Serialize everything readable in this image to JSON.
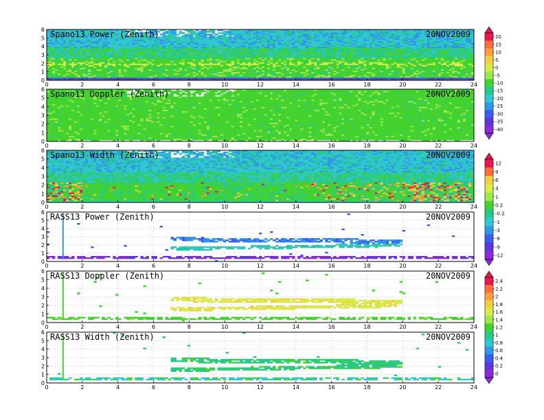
{
  "chart_data": {
    "type": "heatmap",
    "x_ticks": [
      "0",
      "2",
      "4",
      "6",
      "8",
      "10",
      "12",
      "14",
      "16",
      "18",
      "20",
      "22",
      "24"
    ],
    "y_ticks": [
      "0",
      "1",
      "2",
      "3",
      "4",
      "5",
      "6"
    ],
    "xlim": [
      0,
      24
    ],
    "ylim": [
      0,
      6
    ],
    "panels": [
      {
        "title": "Spano13 Power (Zenith)",
        "date": "20NOV2009",
        "kind": "power",
        "colorbar": 0
      },
      {
        "title": "Spano13 Doppler (Zenith)",
        "date": "20NOV2009",
        "kind": "doppler",
        "colorbar": 0
      },
      {
        "title": "Spano13 Width (Zenith)",
        "date": "20NOV2009",
        "kind": "width",
        "colorbar": 1
      },
      {
        "title": "RASS13 Power (Zenith)",
        "date": "20NOV2009",
        "kind": "rpower",
        "colorbar": 1
      },
      {
        "title": "RASS13 Doppler (Zenith)",
        "date": "20NOV2009",
        "kind": "rdoppler",
        "colorbar": 2
      },
      {
        "title": "RASS13 Width (Zenith)",
        "date": "20NOV2009",
        "kind": "rwidth",
        "colorbar": 2
      }
    ],
    "colorbars": [
      {
        "labels": [
          "20",
          "15",
          "10",
          "5",
          "0",
          "-5",
          "-10",
          "-15",
          "-20",
          "-25",
          "-30",
          "-35",
          "-40"
        ]
      },
      {
        "labels": [
          "12",
          "9",
          "6",
          "3",
          "1",
          "0.2",
          "-0.2",
          "-1",
          "-3",
          "-6",
          "-9",
          "-12"
        ]
      },
      {
        "labels": [
          "2.4",
          "2.2",
          "2",
          "1.8",
          "1.6",
          "1.4",
          "1.2",
          "1",
          "0.8",
          "0.6",
          "0.4",
          "0.2",
          "0"
        ]
      }
    ],
    "grid": true
  }
}
